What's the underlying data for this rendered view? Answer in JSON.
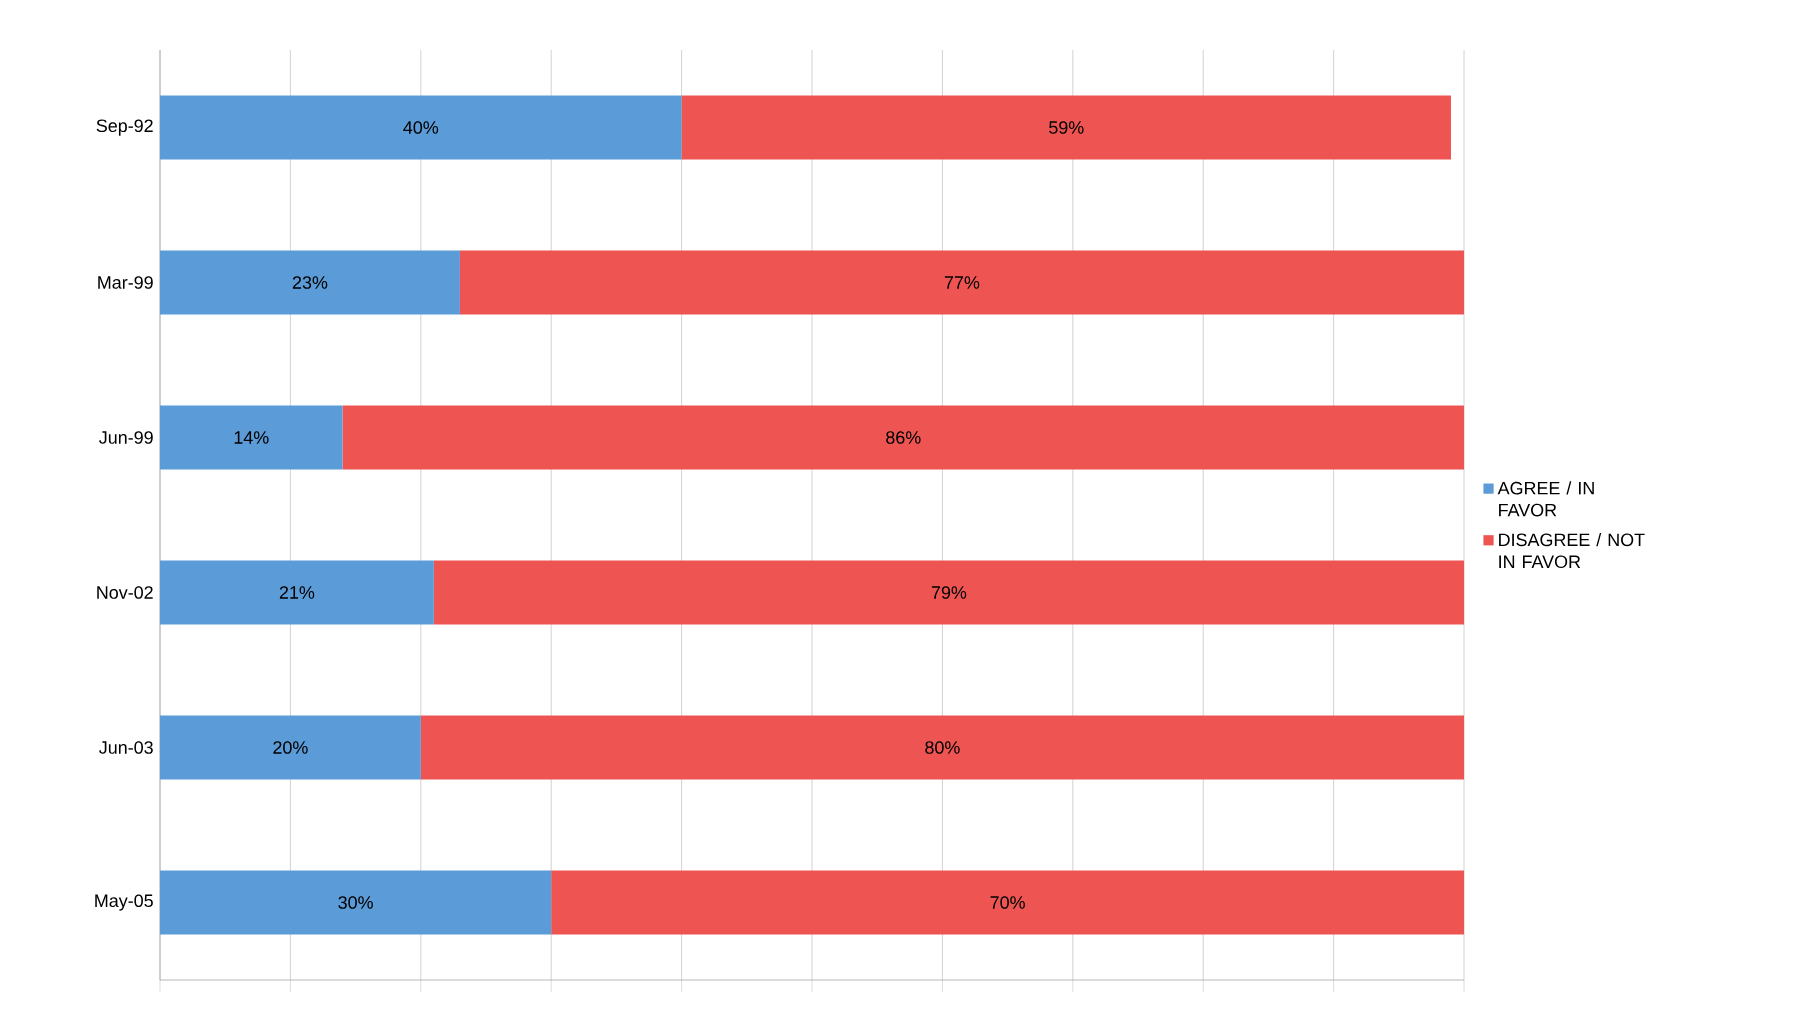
{
  "chart_data": {
    "type": "bar",
    "orientation": "horizontal",
    "stacked": true,
    "categories": [
      "Sep-92",
      "Mar-99",
      "Jun-99",
      "Nov-02",
      "Jun-03",
      "May-05"
    ],
    "series": [
      {
        "name": "AGREE / IN FAVOR",
        "color": "#5b9bd8",
        "values": [
          40,
          23,
          14,
          21,
          20,
          30
        ],
        "value_labels": [
          "40%",
          "23%",
          "14%",
          "21%",
          "20%",
          "30%"
        ]
      },
      {
        "name": "DISAGREE / NOT IN FAVOR",
        "color": "#ee5552",
        "values": [
          59,
          77,
          86,
          79,
          80,
          70
        ],
        "value_labels": [
          "59%",
          "77%",
          "86%",
          "79%",
          "80%",
          "70%"
        ]
      }
    ],
    "tick_labels": "y",
    "grid": "x",
    "legend": "right"
  }
}
